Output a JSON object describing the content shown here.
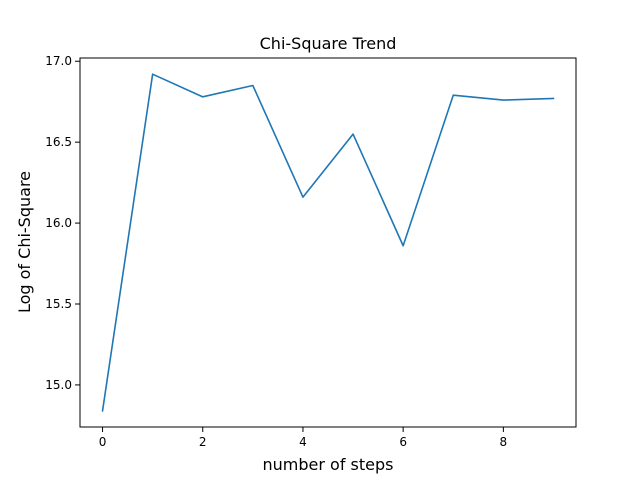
{
  "chart_data": {
    "type": "line",
    "title": "Chi-Square Trend",
    "xlabel": "number of steps",
    "ylabel": "Log of Chi-Square",
    "xlim": [
      -0.45,
      9.45
    ],
    "ylim": [
      14.74,
      17.02
    ],
    "xticks": [
      0,
      2,
      4,
      6,
      8
    ],
    "xtick_labels": [
      "0",
      "2",
      "4",
      "6",
      "8"
    ],
    "yticks": [
      15.0,
      15.5,
      16.0,
      16.5,
      17.0
    ],
    "ytick_labels": [
      "15.0",
      "15.5",
      "16.0",
      "16.5",
      "17.0"
    ],
    "grid": false,
    "series": [
      {
        "color": "#1f77b4",
        "x": [
          0,
          1,
          2,
          3,
          4,
          5,
          6,
          7,
          8,
          9
        ],
        "y": [
          14.84,
          16.92,
          16.78,
          16.85,
          16.16,
          16.55,
          15.86,
          16.79,
          16.76,
          16.77
        ]
      }
    ]
  }
}
